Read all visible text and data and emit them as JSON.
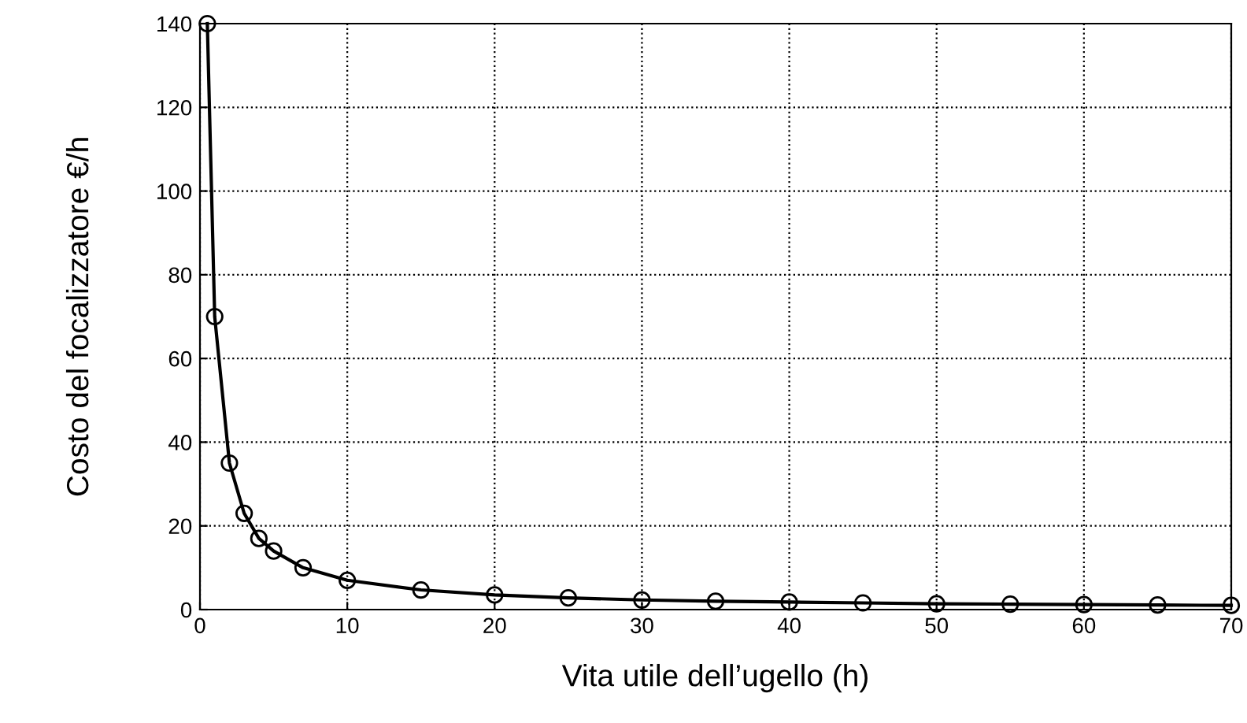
{
  "chart_data": {
    "type": "line",
    "xlabel": "Vita utile dell’ugello (h)",
    "ylabel": "Costo del focalizzatore €/h",
    "x": [
      0.5,
      1,
      2,
      3,
      4,
      5,
      7,
      10,
      15,
      20,
      25,
      30,
      35,
      40,
      45,
      50,
      55,
      60,
      65,
      70
    ],
    "series": [
      {
        "color": "#000000",
        "values": [
          140,
          70,
          35,
          23,
          17,
          14,
          10,
          7,
          4.7,
          3.5,
          2.8,
          2.3,
          2,
          1.8,
          1.6,
          1.4,
          1.3,
          1.2,
          1.1,
          1
        ]
      }
    ],
    "xlim": [
      0,
      70
    ],
    "xticks": [
      0,
      10,
      20,
      30,
      40,
      50,
      60,
      70
    ],
    "ylim": [
      0,
      140
    ],
    "yticks": [
      0,
      20,
      40,
      60,
      80,
      100,
      120,
      140
    ],
    "grid": true,
    "marker": "circle",
    "line_style": "solid"
  }
}
